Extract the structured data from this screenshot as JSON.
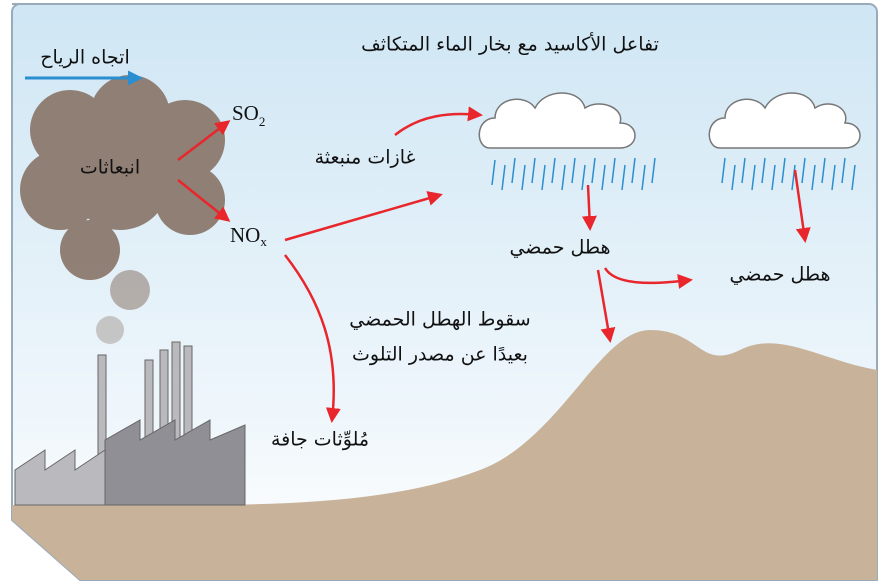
{
  "title": "تفاعل الأكاسيد مع بخار الماء المتكاثف",
  "wind": "اتجاه الرياح",
  "emissions": "انبعاثات",
  "so2": {
    "main": "SO",
    "sub": "2"
  },
  "nox": {
    "main": "NO",
    "sub": "x"
  },
  "released_gases": "غازات منبعثة",
  "acid_precipitation": [
    "هطل حمضي",
    "هطل حمضي"
  ],
  "far_fall": [
    "سقوط الهطل الحمضي",
    "بعيدًا عن مصدر التلوث"
  ],
  "dry_pollutants": "مُلوِّثات جافة"
}
